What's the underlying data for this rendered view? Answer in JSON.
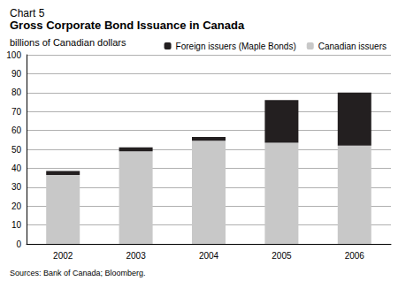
{
  "chart_data": {
    "type": "bar",
    "heading": "Chart 5",
    "title": "Gross Corporate Bond Issuance in Canada",
    "subtitle": "billions of Canadian dollars",
    "source": "Sources: Bank of Canada; Bloomberg.",
    "categories": [
      "2002",
      "2003",
      "2004",
      "2005",
      "2006"
    ],
    "series": [
      {
        "name": "Foreign issuers (Maple Bonds)",
        "color": "#231f20",
        "values": [
          2,
          2,
          2,
          22.5,
          28
        ]
      },
      {
        "name": "Canadian issuers",
        "color": "#c8c8c8",
        "values": [
          36.5,
          49,
          54.5,
          53.5,
          52
        ]
      }
    ],
    "stacked": true,
    "ylim": [
      0,
      100
    ],
    "yticks": [
      0,
      10,
      20,
      30,
      40,
      50,
      60,
      70,
      80,
      90,
      100
    ],
    "grid": true,
    "legend": "top-right"
  }
}
